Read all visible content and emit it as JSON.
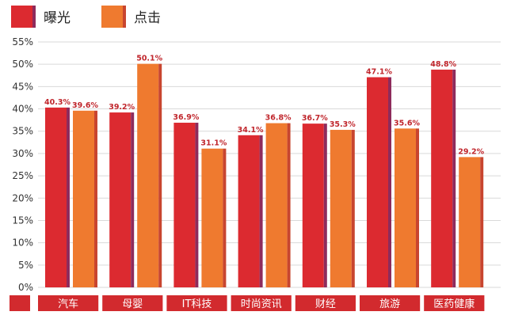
{
  "chart_data": {
    "type": "bar",
    "categories": [
      "汽车",
      "母婴",
      "IT科技",
      "时尚资讯",
      "财经",
      "旅游",
      "医药健康"
    ],
    "series": [
      {
        "name": "曝光",
        "values": [
          40.3,
          39.2,
          36.9,
          34.1,
          36.7,
          47.1,
          48.8
        ],
        "labels": [
          "40.3%",
          "39.2%",
          "36.9%",
          "34.1%",
          "36.7%",
          "47.1%",
          "48.8%"
        ],
        "color": "#dc2a30",
        "shade": "#8e2b5c"
      },
      {
        "name": "点击",
        "values": [
          39.6,
          50.1,
          31.1,
          36.8,
          35.3,
          35.6,
          29.2
        ],
        "labels": [
          "39.6%",
          "50.1%",
          "31.1%",
          "36.8%",
          "35.3%",
          "35.6%",
          "29.2%"
        ],
        "color": "#ef7a2f",
        "shade": "#c8452f"
      }
    ],
    "yticks": [
      "0%",
      "5%",
      "10%",
      "15%",
      "20%",
      "25%",
      "30%",
      "35%",
      "40%",
      "45%",
      "50%",
      "55%"
    ],
    "ylim": [
      0,
      55
    ],
    "grid": true,
    "legend_position": "top-left",
    "category_band_color": "#d22a2e"
  }
}
